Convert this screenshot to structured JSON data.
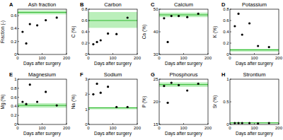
{
  "chart_data": [
    {
      "type": "scatter",
      "panel": "A",
      "title": "Ash fraction",
      "x_label": "Days after surgery",
      "y_label": "Fraction (-)",
      "x": [
        20,
        35,
        50,
        80,
        115,
        160
      ],
      "values": [
        0.35,
        0.17,
        0.47,
        0.45,
        0.53,
        0.57
      ],
      "color": "#000000",
      "xlim": [
        0,
        200
      ],
      "xticks": [
        0,
        100,
        200
      ],
      "ylim": [
        0,
        0.7
      ],
      "yticks": [
        0,
        0.2,
        0.4,
        0.6
      ],
      "reference": {
        "low": 0.62,
        "high": 0.68,
        "value": 0.65
      }
    },
    {
      "type": "scatter",
      "panel": "B",
      "title": "Carbon",
      "x_label": "Days after surgery",
      "y_label": "C (%)",
      "x": [
        20,
        35,
        50,
        80,
        115,
        160
      ],
      "values": [
        0.18,
        0.22,
        0.25,
        0.37,
        0.36,
        0.65
      ],
      "color": "#000000",
      "xlim": [
        0,
        200
      ],
      "xticks": [
        0,
        100,
        200
      ],
      "ylim": [
        0,
        0.8
      ],
      "yticks": [
        0,
        0.2,
        0.4,
        0.6,
        0.8
      ],
      "reference": {
        "low": 0.47,
        "high": 0.75,
        "value": 0.6
      }
    },
    {
      "type": "scatter",
      "panel": "C",
      "title": "Calcium",
      "x_label": "Days after surgery",
      "y_label": "Ca (%)",
      "x": [
        20,
        35,
        50,
        80,
        115,
        160
      ],
      "values": [
        46,
        35.5,
        47,
        47,
        46.5,
        48
      ],
      "color": "#000000",
      "xlim": [
        0,
        200
      ],
      "xticks": [
        0,
        100,
        200
      ],
      "ylim": [
        30,
        50
      ],
      "yticks": [
        30,
        40,
        50
      ],
      "reference": {
        "low": 46.5,
        "high": 48.5,
        "value": 47.5
      }
    },
    {
      "type": "scatter",
      "panel": "D",
      "title": "Potassium",
      "x_label": "Days after surgery",
      "y_label": "K (%)",
      "x": [
        20,
        35,
        50,
        80,
        115,
        160
      ],
      "values": [
        0.5,
        0.72,
        0.35,
        0.55,
        0.15,
        0.13
      ],
      "color": "#000000",
      "xlim": [
        0,
        200
      ],
      "xticks": [
        0,
        100,
        200
      ],
      "ylim": [
        0,
        0.8
      ],
      "yticks": [
        0,
        0.2,
        0.4,
        0.6,
        0.8
      ],
      "reference": {
        "low": 0.05,
        "high": 0.1,
        "value": 0.08
      }
    },
    {
      "type": "scatter",
      "panel": "E",
      "title": "Magnesium",
      "x_label": "Days after surgery",
      "y_label": "Mg (%)",
      "x": [
        20,
        35,
        50,
        80,
        115,
        160
      ],
      "values": [
        0.5,
        0.45,
        0.88,
        0.5,
        0.72,
        0.42
      ],
      "color": "#000000",
      "xlim": [
        0,
        200
      ],
      "xticks": [
        0,
        100,
        200
      ],
      "ylim": [
        0,
        1
      ],
      "yticks": [
        0,
        0.2,
        0.4,
        0.6,
        0.8,
        1
      ],
      "reference": {
        "low": 0.37,
        "high": 0.47,
        "value": 0.42
      }
    },
    {
      "type": "scatter",
      "panel": "F",
      "title": "Sodium",
      "x_label": "Days after surgery",
      "y_label": "Na (%)",
      "x": [
        20,
        35,
        50,
        80,
        115,
        160
      ],
      "values": [
        2.0,
        2.7,
        2.1,
        2.5,
        1.15,
        1.15
      ],
      "color": "#000000",
      "xlim": [
        0,
        200
      ],
      "xticks": [
        0,
        100,
        200
      ],
      "ylim": [
        0,
        3
      ],
      "yticks": [
        0,
        1,
        2,
        3
      ],
      "reference": {
        "low": 1.0,
        "high": 1.15,
        "value": 1.1
      }
    },
    {
      "type": "scatter",
      "panel": "G",
      "title": "Phosphorus",
      "x_label": "Days after surgery",
      "y_label": "P (%)",
      "x": [
        20,
        35,
        50,
        80,
        115,
        160
      ],
      "values": [
        23.5,
        19.8,
        24.2,
        23.7,
        22.5,
        24
      ],
      "color": "#000000",
      "xlim": [
        0,
        200
      ],
      "xticks": [
        0,
        100,
        200
      ],
      "ylim": [
        15,
        25
      ],
      "yticks": [
        15,
        20,
        25
      ],
      "reference": {
        "low": 23.3,
        "high": 24.3,
        "value": 23.8
      }
    },
    {
      "type": "scatter",
      "panel": "H",
      "title": "Strontium",
      "x_label": "Days after surgery",
      "y_label": "Sr (%)",
      "x": [
        20,
        35,
        50,
        80,
        115,
        160
      ],
      "values": [
        0.03,
        0.03,
        0.03,
        0.03,
        0.02,
        0.03
      ],
      "color": "#000000",
      "xlim": [
        0,
        200
      ],
      "xticks": [
        0,
        100,
        200
      ],
      "ylim": [
        0,
        1
      ],
      "yticks": [
        0,
        0.5,
        1
      ],
      "reference": {
        "low": 0.02,
        "high": 0.05,
        "value": 0.035
      }
    }
  ]
}
